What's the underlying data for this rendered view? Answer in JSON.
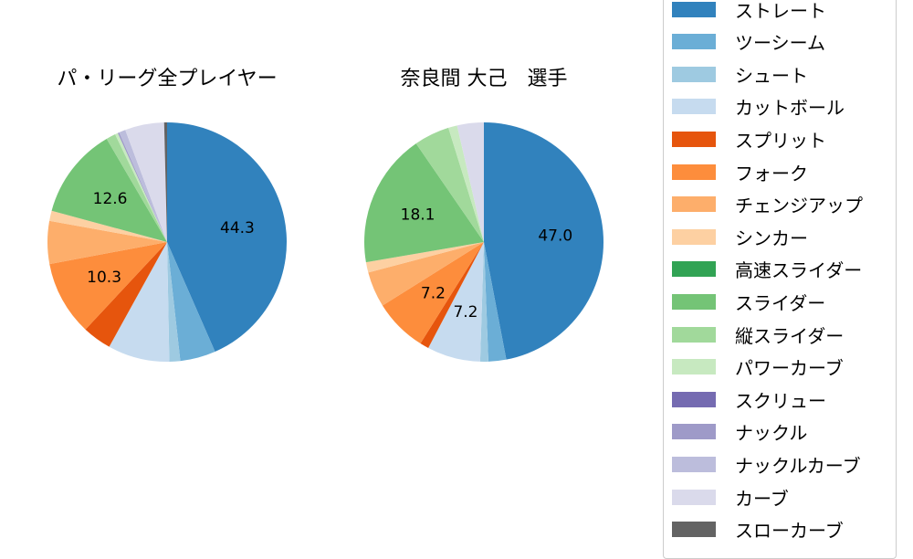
{
  "chart_data": [
    {
      "type": "pie",
      "title": "パ・リーグ全プレイヤー",
      "start_angle": 90,
      "direction": "clockwise",
      "categories": [
        "ストレート",
        "ツーシーム",
        "シュート",
        "カットボール",
        "スプリット",
        "フォーク",
        "チェンジアップ",
        "シンカー",
        "高速スライダー",
        "スライダー",
        "縦スライダー",
        "パワーカーブ",
        "スクリュー",
        "ナックル",
        "ナックルカーブ",
        "カーブ",
        "スローカーブ"
      ],
      "values": [
        44.3,
        4.9,
        1.5,
        8.5,
        4.0,
        10.3,
        5.9,
        1.4,
        0.0,
        12.6,
        1.3,
        0.4,
        0.0,
        0.2,
        0.9,
        5.4,
        0.4
      ],
      "labels_shown": {
        "ストレート": "44.3",
        "フォーク": "10.3",
        "スライダー": "12.6"
      }
    },
    {
      "type": "pie",
      "title": "奈良間 大己　選手",
      "start_angle": 90,
      "direction": "clockwise",
      "categories": [
        "ストレート",
        "ツーシーム",
        "シュート",
        "カットボール",
        "スプリット",
        "フォーク",
        "チェンジアップ",
        "シンカー",
        "高速スライダー",
        "スライダー",
        "縦スライダー",
        "パワーカーブ",
        "スクリュー",
        "ナックル",
        "ナックルカーブ",
        "カーブ",
        "スローカーブ"
      ],
      "values": [
        47.0,
        2.4,
        1.1,
        7.2,
        1.2,
        7.2,
        4.8,
        1.4,
        0.0,
        18.1,
        4.8,
        1.2,
        0.0,
        0.0,
        0.0,
        3.6,
        0.0
      ],
      "labels_shown": {
        "ストレート": "47.0",
        "カットボール": "7.2",
        "フォーク": "7.2",
        "スライダー": "18.1"
      }
    }
  ],
  "titles": {
    "left": "パ・リーグ全プレイヤー",
    "right": "奈良間 大己　選手"
  },
  "legend": {
    "items": [
      {
        "label": "ストレート",
        "color": "#3182bd"
      },
      {
        "label": "ツーシーム",
        "color": "#6baed6"
      },
      {
        "label": "シュート",
        "color": "#9ecae1"
      },
      {
        "label": "カットボール",
        "color": "#c6dbef"
      },
      {
        "label": "スプリット",
        "color": "#e6550d"
      },
      {
        "label": "フォーク",
        "color": "#fd8d3c"
      },
      {
        "label": "チェンジアップ",
        "color": "#fdae6b"
      },
      {
        "label": "シンカー",
        "color": "#fdd0a2"
      },
      {
        "label": "高速スライダー",
        "color": "#31a354"
      },
      {
        "label": "スライダー",
        "color": "#74c476"
      },
      {
        "label": "縦スライダー",
        "color": "#a1d99b"
      },
      {
        "label": "パワーカーブ",
        "color": "#c7e9c0"
      },
      {
        "label": "スクリュー",
        "color": "#756bb1"
      },
      {
        "label": "ナックル",
        "color": "#9e9ac8"
      },
      {
        "label": "ナックルカーブ",
        "color": "#bcbddc"
      },
      {
        "label": "カーブ",
        "color": "#dadaeb"
      },
      {
        "label": "スローカーブ",
        "color": "#636363"
      }
    ]
  }
}
